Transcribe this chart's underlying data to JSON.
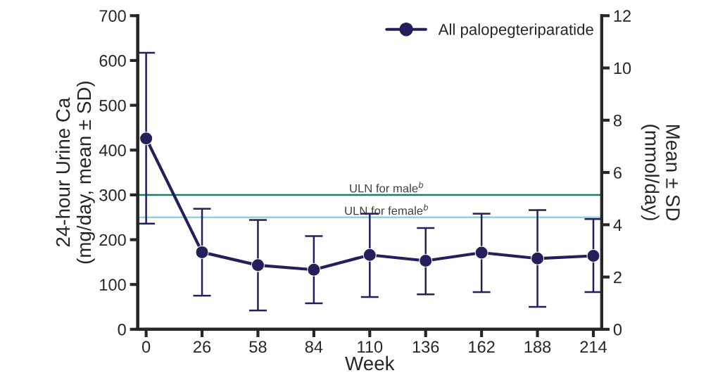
{
  "chart_data": {
    "type": "line",
    "xlabel": "Week",
    "ylabel": "24-hour Urine Ca\n(mg/day, mean ± SD)",
    "y2label": "Mean ± SD\n(mmol/day)",
    "categories": [
      "0",
      "26",
      "58",
      "84",
      "110",
      "136",
      "162",
      "188",
      "214"
    ],
    "series": [
      {
        "name": "All palopegteriparatide",
        "color": "#221f5a",
        "values": [
          426,
          172,
          143,
          133,
          166,
          153,
          171,
          158,
          164
        ],
        "errors": [
          [
            236,
            617
          ],
          [
            75,
            269
          ],
          [
            42,
            244
          ],
          [
            58,
            208
          ],
          [
            72,
            258
          ],
          [
            78,
            226
          ],
          [
            83,
            258
          ],
          [
            50,
            266
          ],
          [
            83,
            246
          ]
        ]
      }
    ],
    "ylim": [
      0,
      700
    ],
    "yticks": [
      0,
      100,
      200,
      300,
      400,
      500,
      600,
      700
    ],
    "y2lim": [
      0,
      12
    ],
    "y2ticks": [
      0,
      2,
      4,
      6,
      8,
      10,
      12
    ],
    "ref_lines": [
      {
        "axis": "y",
        "value": 300,
        "label": "ULN for male$^{b}$",
        "color": "#1a7a70"
      },
      {
        "axis": "y",
        "value": 250,
        "label": "ULN for female$^{b}$",
        "color": "#8fd3e0"
      }
    ],
    "legend": "top right",
    "marker": "circle",
    "line_style": "solid",
    "grid": false
  }
}
